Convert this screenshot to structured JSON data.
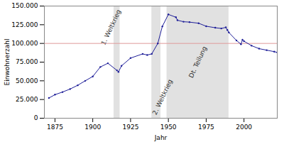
{
  "chart_data": {
    "type": "line",
    "x_label": "Jahr",
    "y_label": "Einwohnerzahl",
    "x": [
      1871,
      1875,
      1880,
      1885,
      1890,
      1895,
      1900,
      1905,
      1910,
      1916,
      1917,
      1919,
      1925,
      1933,
      1936,
      1939,
      1943,
      1946,
      1950,
      1955,
      1956,
      1960,
      1964,
      1970,
      1975,
      1981,
      1985,
      1988,
      1989,
      1990,
      1995,
      1998,
      1999,
      2000,
      2005,
      2010,
      2015,
      2020,
      2022
    ],
    "values": [
      27000,
      31500,
      35000,
      39000,
      44000,
      50000,
      55800,
      68500,
      73500,
      64000,
      62000,
      70000,
      80400,
      86000,
      84500,
      86000,
      100000,
      122800,
      138800,
      135000,
      131000,
      129000,
      128500,
      127000,
      123000,
      121000,
      120000,
      121500,
      118000,
      114600,
      104000,
      99000,
      104900,
      103000,
      97000,
      93000,
      91000,
      89000,
      88000
    ],
    "color": "#1f1f99",
    "marker": "circle",
    "xlim": [
      1868,
      2022
    ],
    "xticks": [
      1875,
      1900,
      1925,
      1950,
      1975,
      2000
    ],
    "ylim": [
      0,
      150000
    ],
    "yticks": [
      0,
      {
        "value": 25000,
        "label": "25.000"
      },
      {
        "value": 50000,
        "label": "50.000"
      },
      {
        "value": 75000,
        "label": "75.000"
      },
      {
        "value": 100000,
        "label": "100.000"
      },
      {
        "value": 125000,
        "label": "125.000"
      },
      {
        "value": 150000,
        "label": "150.000"
      }
    ],
    "reference_line": {
      "value": 100000,
      "color": "#e09a9a"
    },
    "periods": [
      {
        "start": 1914,
        "end": 1918,
        "label": "1. Weltkrieg"
      },
      {
        "start": 1939,
        "end": 1945,
        "label": "2. Weltkrieg"
      },
      {
        "start": 1949,
        "end": 1990,
        "label": "Dt. Teilung"
      }
    ],
    "grid": false
  }
}
